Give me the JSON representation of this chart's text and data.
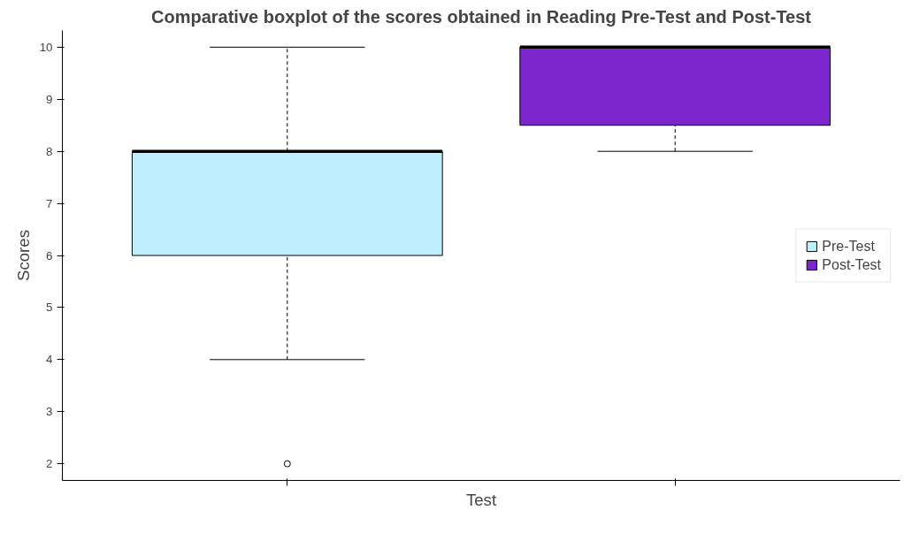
{
  "chart_data": {
    "type": "box",
    "title": "Comparative boxplot of the scores obtained in Reading Pre-Test and Post-Test",
    "xlabel": "Test",
    "ylabel": "Scores",
    "categories": [
      null,
      null
    ],
    "series": [
      {
        "name": "Pre-Test",
        "color": "#bfefff",
        "boxes": [
          {
            "low": 4,
            "q1": 6,
            "median": 8,
            "q3": 8,
            "high": 10,
            "outliers": [
              2
            ]
          },
          null
        ]
      },
      {
        "name": "Post-Test",
        "color": "#7d26cd",
        "boxes": [
          null,
          {
            "low": 8,
            "q1": 8.5,
            "median": 10,
            "q3": 10,
            "high": 10
          }
        ]
      }
    ],
    "ylim": [
      1.68,
      10.32
    ],
    "yticks": [
      2,
      3,
      4,
      5,
      6,
      7,
      8,
      9,
      10
    ],
    "grid": false,
    "legend": "right",
    "tick_labels": "y"
  }
}
